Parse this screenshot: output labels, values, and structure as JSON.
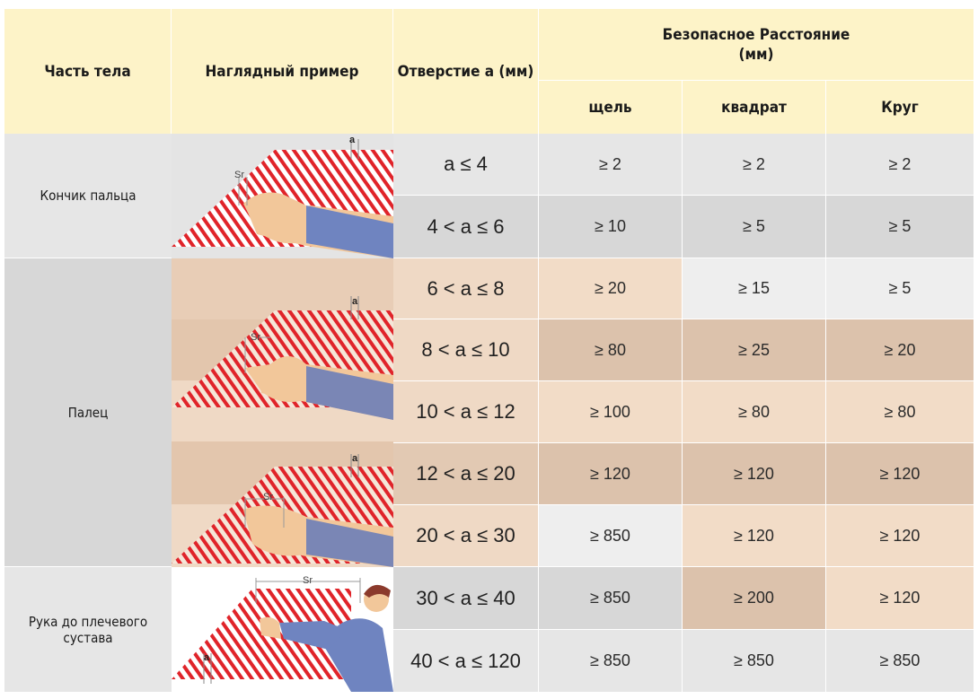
{
  "headers": {
    "part": "Часть тела",
    "example": "Наглядный пример",
    "opening": "Отверстие a (мм)",
    "safe_distance": "Безопасное Расстояние\n(мм)",
    "slot": "щель",
    "square": "квадрат",
    "circle": "Круг"
  },
  "parts": {
    "fingertip": "Кончик пальца",
    "finger": "Палец",
    "arm": "Рука до плечевого сустава"
  },
  "rows": [
    {
      "range": "a ≤ 4",
      "slot": "≥ 2",
      "square": "≥ 2",
      "circle": "≥ 2"
    },
    {
      "range": "4 < a ≤ 6",
      "slot": "≥ 10",
      "square": "≥ 5",
      "circle": "≥ 5"
    },
    {
      "range": "6 < a ≤ 8",
      "slot": "≥ 20",
      "square": "≥ 15",
      "circle": "≥ 5"
    },
    {
      "range": "8 < a ≤ 10",
      "slot": "≥ 80",
      "square": "≥ 25",
      "circle": "≥ 20"
    },
    {
      "range": "10 < a ≤ 12",
      "slot": "≥ 100",
      "square": "≥ 80",
      "circle": "≥ 80"
    },
    {
      "range": "12 < a ≤ 20",
      "slot": "≥ 120",
      "square": "≥ 120",
      "circle": "≥ 120"
    },
    {
      "range": "20 < a ≤ 30",
      "slot": "≥ 850",
      "square": "≥ 120",
      "circle": "≥ 120"
    },
    {
      "range": "30 < a ≤ 40",
      "slot": "≥ 850",
      "square": "≥ 200",
      "circle": "≥ 120"
    },
    {
      "range": "40 < a ≤ 120",
      "slot": "≥ 850",
      "square": "≥ 850",
      "circle": "≥ 850"
    }
  ],
  "illustration_labels": {
    "a": "a",
    "sr": "Sr"
  },
  "colors": {
    "header_bg": "#fdf3c8",
    "hatch": "#e0242a",
    "sleeve": "#6f84c0",
    "skin": "#f2c79a"
  }
}
